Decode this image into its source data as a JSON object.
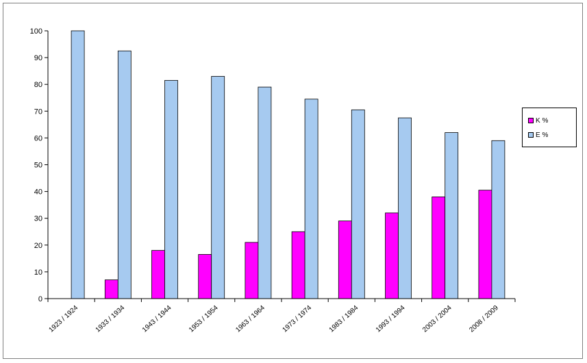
{
  "chart_data": {
    "type": "bar",
    "categories": [
      "1923 / 1924",
      "1933 / 1934",
      "1943 / 1944",
      "1953 / 1954",
      "1963 / 1964",
      "1973 / 1974",
      "1983 / 1984",
      "1993 / 1994",
      "2003 / 2004",
      "2008 / 2009"
    ],
    "series": [
      {
        "name": "K %",
        "color": "#ff00ff",
        "values": [
          0,
          7,
          18,
          16.5,
          21,
          25,
          29,
          32,
          38,
          40.5
        ]
      },
      {
        "name": "E %",
        "color": "#a6caf0",
        "values": [
          100,
          92.5,
          81.5,
          83,
          79,
          74.5,
          70.5,
          67.5,
          62,
          59
        ]
      }
    ],
    "ylim": [
      0,
      100
    ],
    "yticks": [
      0,
      10,
      20,
      30,
      40,
      50,
      60,
      70,
      80,
      90,
      100
    ],
    "legend": "right",
    "grid": false
  }
}
